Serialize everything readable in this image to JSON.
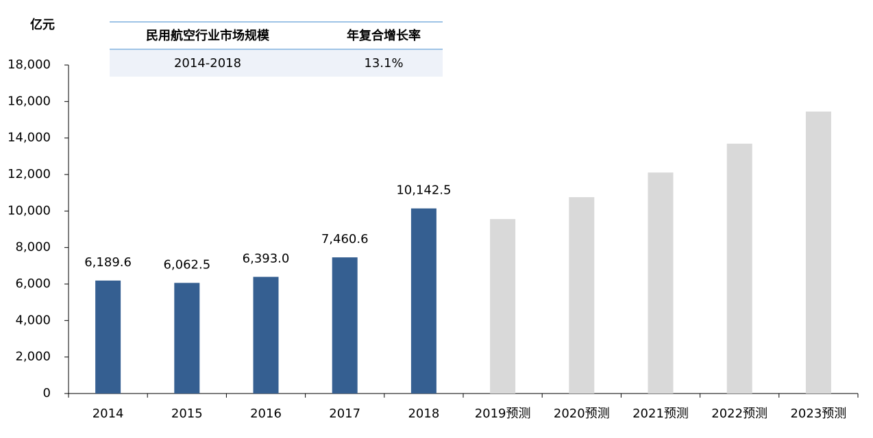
{
  "chart_data": {
    "type": "bar",
    "y_label": "亿元",
    "categories": [
      "2014",
      "2015",
      "2016",
      "2017",
      "2018",
      "2019预测",
      "2020预测",
      "2021预测",
      "2022预测",
      "2023预测"
    ],
    "values": [
      6189.6,
      6062.5,
      6393.0,
      7460.6,
      10142.5,
      9560,
      10760,
      12110,
      13690,
      15450
    ],
    "value_labels": [
      "6,189.6",
      "6,062.5",
      "6,393.0",
      "7,460.6",
      "10,142.5",
      null,
      null,
      null,
      null,
      null
    ],
    "colors": [
      "#355f91",
      "#355f91",
      "#355f91",
      "#355f91",
      "#355f91",
      "#d9d9d9",
      "#d9d9d9",
      "#d9d9d9",
      "#d9d9d9",
      "#d9d9d9"
    ],
    "ylim": [
      0,
      18000
    ],
    "yticks": [
      0,
      {
        "value": 2000,
        "label": "2,000"
      },
      {
        "value": 4000,
        "label": "4,000"
      },
      {
        "value": 6000,
        "label": "6,000"
      },
      {
        "value": 8000,
        "label": "8,000"
      },
      {
        "value": 10000,
        "label": "10,000"
      },
      {
        "value": 12000,
        "label": "12,000"
      },
      {
        "value": 14000,
        "label": "14,000"
      },
      {
        "value": 16000,
        "label": "16,000"
      },
      {
        "value": 18000,
        "label": "18,000"
      }
    ],
    "grid": false,
    "table": {
      "header": [
        "民用航空行业市场规模",
        "年复合增长率"
      ],
      "rows": [
        [
          "2014-2018",
          "13.1%"
        ]
      ]
    }
  }
}
